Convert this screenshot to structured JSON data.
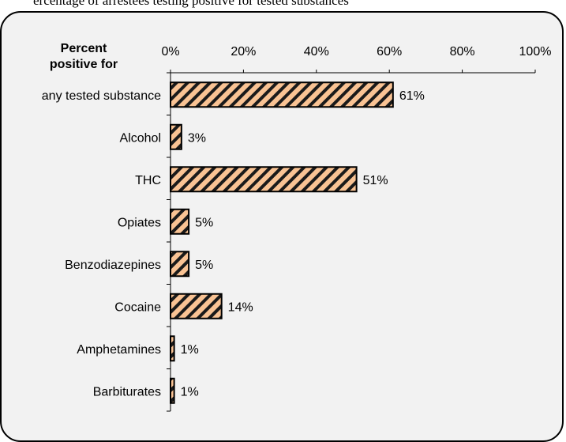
{
  "header": {
    "caption": "ercentage of arrestees testing positive for tested substances"
  },
  "chart_data": {
    "type": "bar",
    "orientation": "horizontal",
    "title": "Percent positive for",
    "categories": [
      "any tested substance",
      "Alcohol",
      "THC",
      "Opiates",
      "Benzodiazepines",
      "Cocaine",
      "Amphetamines",
      "Barbiturates"
    ],
    "values": [
      61,
      3,
      51,
      5,
      5,
      14,
      1,
      1
    ],
    "value_labels": [
      "61%",
      "3%",
      "51%",
      "5%",
      "5%",
      "14%",
      "1%",
      "1%"
    ],
    "xlim": [
      0,
      100
    ],
    "x_ticks": [
      "0%",
      "20%",
      "40%",
      "60%",
      "80%",
      "100%"
    ],
    "x_tick_values": [
      0,
      20,
      40,
      60,
      80,
      100
    ],
    "axis_position": "top",
    "grid": false,
    "bar_fill": "#f9c394",
    "bar_hatch": "#1a1a1a",
    "panel_background": "#f2f2f2"
  }
}
